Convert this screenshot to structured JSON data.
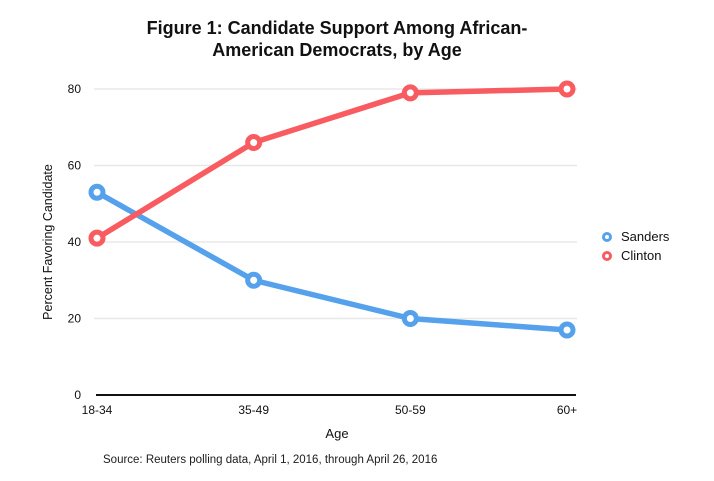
{
  "figure": {
    "title_lines": [
      "Figure 1: Candidate Support Among African-",
      "American Democrats, by Age"
    ],
    "source": "Source: Reuters polling data, April 1, 2016, through April 26, 2016"
  },
  "chart_data": {
    "type": "line",
    "title": "Figure 1: Candidate Support Among African-American Democrats, by Age",
    "categories": [
      "18-34",
      "35-49",
      "50-59",
      "60+"
    ],
    "series": [
      {
        "name": "Sanders",
        "color": "#55A1EC",
        "values": [
          53,
          30,
          20,
          17
        ]
      },
      {
        "name": "Clinton",
        "color": "#F85B60",
        "values": [
          41,
          66,
          79,
          80
        ]
      }
    ],
    "xlabel": "Age",
    "ylabel": "Percent Favoring Candidate",
    "ylim": [
      0,
      80
    ],
    "yticks": [
      0,
      20,
      40,
      60,
      80
    ],
    "grid": true,
    "legend_position": "right",
    "colors": {
      "gridline": "#E8E8E8",
      "axis": "#111111",
      "text": "#111111"
    }
  }
}
